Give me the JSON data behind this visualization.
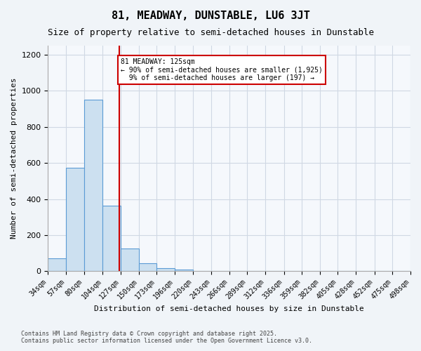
{
  "title": "81, MEADWAY, DUNSTABLE, LU6 3JT",
  "subtitle": "Size of property relative to semi-detached houses in Dunstable",
  "xlabel": "Distribution of semi-detached houses by size in Dunstable",
  "ylabel": "Number of semi-detached properties",
  "footer_line1": "Contains HM Land Registry data © Crown copyright and database right 2025.",
  "footer_line2": "Contains public sector information licensed under the Open Government Licence v3.0.",
  "bin_labels": [
    "34sqm",
    "57sqm",
    "80sqm",
    "104sqm",
    "127sqm",
    "150sqm",
    "173sqm",
    "196sqm",
    "220sqm",
    "243sqm",
    "266sqm",
    "289sqm",
    "312sqm",
    "336sqm",
    "359sqm",
    "382sqm",
    "405sqm",
    "428sqm",
    "452sqm",
    "475sqm",
    "498sqm"
  ],
  "bin_edges": [
    34,
    57,
    80,
    104,
    127,
    150,
    173,
    196,
    220,
    243,
    266,
    289,
    312,
    336,
    359,
    382,
    405,
    428,
    452,
    475,
    498
  ],
  "bar_heights": [
    70,
    575,
    950,
    365,
    125,
    43,
    15,
    10,
    0,
    0,
    0,
    0,
    0,
    0,
    0,
    0,
    0,
    0,
    0,
    0
  ],
  "bar_color": "#cce0f0",
  "bar_edge_color": "#5b9bd5",
  "grid_color": "#d0d8e4",
  "reference_line_x": 125,
  "reference_line_color": "#cc0000",
  "annotation_text": "81 MEADWAY: 125sqm\n← 90% of semi-detached houses are smaller (1,925)\n  9% of semi-detached houses are larger (197) →",
  "annotation_box_color": "#cc0000",
  "ylim": [
    0,
    1250
  ],
  "yticks": [
    0,
    200,
    400,
    600,
    800,
    1000,
    1200
  ],
  "background_color": "#f0f4f8",
  "plot_bg_color": "#f5f8fc"
}
